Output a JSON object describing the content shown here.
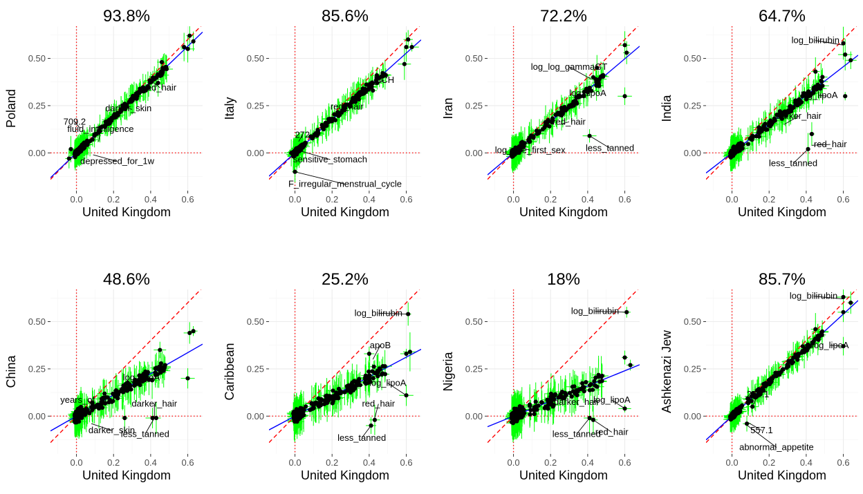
{
  "colors": {
    "points": "#000000",
    "error_bars": "#00ff00",
    "fit_line": "#0000ff",
    "identity_line": "#ff0000",
    "zero_lines": "#ff0000",
    "grid": "#ebebeb",
    "grid_minor": "#f4f4f4"
  },
  "chart_data": [
    {
      "type": "scatter",
      "title": "93.8%",
      "xlabel": "United Kingdom",
      "ylabel": "Poland",
      "xlim": [
        -0.14,
        0.68
      ],
      "ylim": [
        -0.2,
        0.67
      ],
      "xticks": [
        "0.0",
        "0.2",
        "0.4",
        "0.6"
      ],
      "yticks": [
        "0.00",
        "0.25",
        "0.50"
      ],
      "grid": true,
      "slope": 0.94,
      "annotations": [
        {
          "text": "red_hair",
          "x": 0.42,
          "y": 0.37,
          "tx": 0.45,
          "ty": 0.33
        },
        {
          "text": "darker_skin",
          "x": 0.3,
          "y": 0.23,
          "tx": 0.28,
          "ty": 0.22
        },
        {
          "text": "709.2",
          "x": 0.02,
          "y": 0.13,
          "tx": -0.01,
          "ty": 0.15
        },
        {
          "text": "fluid_intelligence",
          "x": 0.12,
          "y": 0.06,
          "tx": 0.13,
          "ty": 0.11
        },
        {
          "text": "depressed_for_1w",
          "x": 0.09,
          "y": -0.01,
          "tx": 0.22,
          "ty": -0.06
        }
      ],
      "points": [
        [
          0.61,
          0.62
        ],
        [
          0.6,
          0.55
        ],
        [
          0.63,
          0.59
        ],
        [
          0.58,
          0.56
        ],
        [
          -0.03,
          0.02
        ],
        [
          -0.04,
          -0.03
        ],
        [
          0.42,
          0.39
        ],
        [
          0.44,
          0.37
        ],
        [
          0.46,
          0.48
        ]
      ]
    },
    {
      "type": "scatter",
      "title": "85.6%",
      "xlabel": "United Kingdom",
      "ylabel": "Italy",
      "xlim": [
        -0.14,
        0.68
      ],
      "ylim": [
        -0.2,
        0.67
      ],
      "xticks": [
        "0.0",
        "0.2",
        "0.4",
        "0.6"
      ],
      "yticks": [
        "0.00",
        "0.25",
        "0.50"
      ],
      "grid": true,
      "slope": 0.88,
      "annotations": [
        {
          "text": "MCH",
          "x": 0.43,
          "y": 0.36,
          "tx": 0.48,
          "ty": 0.37
        },
        {
          "text": "red_hair",
          "x": 0.3,
          "y": 0.28,
          "tx": 0.28,
          "ty": 0.23
        },
        {
          "text": "272",
          "x": 0.02,
          "y": 0.06,
          "tx": 0.04,
          "ty": 0.08
        },
        {
          "text": "sensitive_stomach",
          "x": 0.03,
          "y": 0.01,
          "tx": 0.19,
          "ty": -0.05
        },
        {
          "text": "F_irregular_menstrual_cycle",
          "x": 0.0,
          "y": -0.1,
          "tx": 0.27,
          "ty": -0.18
        }
      ],
      "points": [
        [
          0.61,
          0.6
        ],
        [
          0.59,
          0.47
        ],
        [
          0.63,
          0.56
        ],
        [
          0.6,
          0.56
        ],
        [
          0.0,
          -0.1
        ],
        [
          -0.02,
          0.0
        ],
        [
          0.42,
          0.33
        ]
      ]
    },
    {
      "type": "scatter",
      "title": "72.2%",
      "xlabel": "United Kingdom",
      "ylabel": "Iran",
      "xlim": [
        -0.14,
        0.68
      ],
      "ylim": [
        -0.2,
        0.67
      ],
      "xticks": [
        "0.0",
        "0.2",
        "0.4",
        "0.6"
      ],
      "yticks": [
        "0.00",
        "0.25",
        "0.50"
      ],
      "grid": true,
      "slope": 0.83,
      "annotations": [
        {
          "text": "log_log_gammaGT",
          "x": 0.42,
          "y": 0.39,
          "tx": 0.3,
          "ty": 0.44
        },
        {
          "text": "log_lipoA",
          "x": 0.4,
          "y": 0.3,
          "tx": 0.4,
          "ty": 0.3
        },
        {
          "text": "red_hair",
          "x": 0.25,
          "y": 0.15,
          "tx": 0.3,
          "ty": 0.15
        },
        {
          "text": "less_tanned",
          "x": 0.41,
          "y": 0.09,
          "tx": 0.52,
          "ty": 0.01
        },
        {
          "text": "log_age_first_sex",
          "x": 0.03,
          "y": 0.03,
          "tx": 0.09,
          "ty": 0.0
        }
      ],
      "points": [
        [
          0.6,
          0.57
        ],
        [
          0.61,
          0.53
        ],
        [
          0.6,
          0.3
        ],
        [
          0.41,
          0.09
        ],
        [
          0.45,
          0.45
        ],
        [
          0.43,
          0.4
        ]
      ]
    },
    {
      "type": "scatter",
      "title": "64.7%",
      "xlabel": "United Kingdom",
      "ylabel": "India",
      "xlim": [
        -0.14,
        0.68
      ],
      "ylim": [
        -0.2,
        0.67
      ],
      "xticks": [
        "0.0",
        "0.2",
        "0.4",
        "0.6"
      ],
      "yticks": [
        "0.00",
        "0.25",
        "0.50"
      ],
      "grid": true,
      "slope": 0.76,
      "annotations": [
        {
          "text": "log_bilirubin",
          "x": 0.6,
          "y": 0.57,
          "tx": 0.45,
          "ty": 0.58
        },
        {
          "text": "log_lipoA",
          "x": 0.51,
          "y": 0.3,
          "tx": 0.47,
          "ty": 0.29
        },
        {
          "text": "darker_hair",
          "x": 0.28,
          "y": 0.15,
          "tx": 0.36,
          "ty": 0.18
        },
        {
          "text": "red_hair",
          "x": 0.43,
          "y": 0.04,
          "tx": 0.53,
          "ty": 0.03
        },
        {
          "text": "less_tanned",
          "x": 0.41,
          "y": 0.02,
          "tx": 0.33,
          "ty": -0.07
        }
      ],
      "points": [
        [
          0.6,
          0.58
        ],
        [
          0.61,
          0.52
        ],
        [
          0.64,
          0.49
        ],
        [
          0.61,
          0.3
        ],
        [
          0.41,
          0.02
        ],
        [
          0.43,
          0.1
        ],
        [
          0.45,
          0.43
        ]
      ]
    },
    {
      "type": "scatter",
      "title": "48.6%",
      "xlabel": "United Kingdom",
      "ylabel": "China",
      "xlim": [
        -0.14,
        0.68
      ],
      "ylim": [
        -0.2,
        0.67
      ],
      "xticks": [
        "0.0",
        "0.2",
        "0.4",
        "0.6"
      ],
      "yticks": [
        "0.00",
        "0.25",
        "0.50"
      ],
      "grid": true,
      "slope": 0.56,
      "annotations": [
        {
          "text": "log_lipoA",
          "x": 0.42,
          "y": 0.2,
          "tx": 0.35,
          "ty": 0.19
        },
        {
          "text": "years_of_edu",
          "x": 0.08,
          "y": 0.07,
          "tx": 0.06,
          "ty": 0.07
        },
        {
          "text": "darker_hair",
          "x": 0.42,
          "y": -0.01,
          "tx": 0.42,
          "ty": 0.05
        },
        {
          "text": "darker_skin",
          "x": 0.08,
          "y": -0.04,
          "tx": 0.19,
          "ty": -0.09
        },
        {
          "text": "less_tanned",
          "x": 0.42,
          "y": -0.01,
          "tx": 0.37,
          "ty": -0.11
        }
      ],
      "points": [
        [
          0.61,
          0.44
        ],
        [
          0.63,
          0.45
        ],
        [
          0.6,
          0.2
        ],
        [
          0.41,
          -0.01
        ],
        [
          0.43,
          -0.01
        ],
        [
          0.26,
          -0.01
        ],
        [
          0.45,
          0.35
        ]
      ]
    },
    {
      "type": "scatter",
      "title": "25.2%",
      "xlabel": "United Kingdom",
      "ylabel": "Caribbean",
      "xlim": [
        -0.14,
        0.68
      ],
      "ylim": [
        -0.2,
        0.67
      ],
      "xticks": [
        "0.0",
        "0.2",
        "0.4",
        "0.6"
      ],
      "yticks": [
        "0.00",
        "0.25",
        "0.50"
      ],
      "grid": true,
      "slope": 0.52,
      "annotations": [
        {
          "text": "log_bilirubin",
          "x": 0.6,
          "y": 0.54,
          "tx": 0.45,
          "ty": 0.53
        },
        {
          "text": "apoB",
          "x": 0.42,
          "y": 0.3,
          "tx": 0.46,
          "ty": 0.36
        },
        {
          "text": "log_lipoA",
          "x": 0.6,
          "y": 0.11,
          "tx": 0.5,
          "ty": 0.16
        },
        {
          "text": "red_hair",
          "x": 0.43,
          "y": -0.01,
          "tx": 0.45,
          "ty": 0.05
        },
        {
          "text": "less_tanned",
          "x": 0.41,
          "y": -0.05,
          "tx": 0.36,
          "ty": -0.13
        }
      ],
      "points": [
        [
          0.61,
          0.54
        ],
        [
          0.4,
          0.33
        ],
        [
          0.6,
          0.11
        ],
        [
          0.41,
          -0.05
        ],
        [
          0.43,
          -0.02
        ],
        [
          0.62,
          0.34
        ],
        [
          0.6,
          0.33
        ]
      ]
    },
    {
      "type": "scatter",
      "title": "18%",
      "xlabel": "United Kingdom",
      "ylabel": "Nigeria",
      "xlim": [
        -0.14,
        0.68
      ],
      "ylim": [
        -0.2,
        0.67
      ],
      "xticks": [
        "0.0",
        "0.2",
        "0.4",
        "0.6"
      ],
      "yticks": [
        "0.00",
        "0.25",
        "0.50"
      ],
      "grid": true,
      "slope": 0.4,
      "annotations": [
        {
          "text": "log_bilirubin",
          "x": 0.6,
          "y": 0.55,
          "tx": 0.44,
          "ty": 0.54
        },
        {
          "text": "log_lipoA",
          "x": 0.6,
          "y": 0.04,
          "tx": 0.53,
          "ty": 0.07
        },
        {
          "text": "darker_hair",
          "x": 0.35,
          "y": 0.06,
          "tx": 0.34,
          "ty": 0.06
        },
        {
          "text": "less_tanned",
          "x": 0.41,
          "y": -0.01,
          "tx": 0.34,
          "ty": -0.11
        },
        {
          "text": "red_hair",
          "x": 0.43,
          "y": -0.02,
          "tx": 0.53,
          "ty": -0.1
        }
      ],
      "points": [
        [
          0.61,
          0.55
        ],
        [
          0.6,
          0.04
        ],
        [
          0.6,
          0.31
        ],
        [
          0.41,
          -0.01
        ],
        [
          0.43,
          -0.02
        ],
        [
          0.63,
          0.27
        ]
      ]
    },
    {
      "type": "scatter",
      "title": "85.7%",
      "xlabel": "United Kingdom",
      "ylabel": "Ashkenazi Jew",
      "xlim": [
        -0.14,
        0.68
      ],
      "ylim": [
        -0.2,
        0.67
      ],
      "xticks": [
        "0.0",
        "0.2",
        "0.4",
        "0.6"
      ],
      "yticks": [
        "0.00",
        "0.25",
        "0.50"
      ],
      "grid": true,
      "slope": 0.9,
      "annotations": [
        {
          "text": "log_bilirubin",
          "x": 0.6,
          "y": 0.62,
          "tx": 0.44,
          "ty": 0.62
        },
        {
          "text": "log_lipoA",
          "x": 0.6,
          "y": 0.37,
          "tx": 0.53,
          "ty": 0.36
        },
        {
          "text": "275.1",
          "x": 0.11,
          "y": 0.05,
          "tx": 0.14,
          "ty": 0.1
        },
        {
          "text": "557.1",
          "x": 0.08,
          "y": -0.03,
          "tx": 0.16,
          "ty": -0.09
        },
        {
          "text": "abnormal_appetite",
          "x": 0.07,
          "y": -0.04,
          "tx": 0.24,
          "ty": -0.18
        }
      ],
      "points": [
        [
          0.6,
          0.63
        ],
        [
          0.6,
          0.55
        ],
        [
          0.64,
          0.6
        ],
        [
          0.6,
          0.37
        ],
        [
          0.11,
          0.05
        ],
        [
          0.08,
          -0.04
        ],
        [
          0.45,
          0.46
        ]
      ]
    }
  ]
}
